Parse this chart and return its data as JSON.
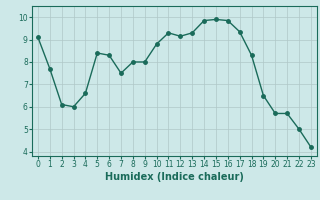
{
  "x": [
    0,
    1,
    2,
    3,
    4,
    5,
    6,
    7,
    8,
    9,
    10,
    11,
    12,
    13,
    14,
    15,
    16,
    17,
    18,
    19,
    20,
    21,
    22,
    23
  ],
  "y": [
    9.1,
    7.7,
    6.1,
    6.0,
    6.6,
    8.4,
    8.3,
    7.5,
    8.0,
    8.0,
    8.8,
    9.3,
    9.15,
    9.3,
    9.85,
    9.9,
    9.85,
    9.35,
    8.3,
    6.5,
    5.7,
    5.7,
    5.0,
    4.2
  ],
  "title": "",
  "xlabel": "Humidex (Indice chaleur)",
  "ylabel": "",
  "xlim": [
    -0.5,
    23.5
  ],
  "ylim": [
    3.8,
    10.5
  ],
  "yticks": [
    4,
    5,
    6,
    7,
    8,
    9,
    10
  ],
  "xticks": [
    0,
    1,
    2,
    3,
    4,
    5,
    6,
    7,
    8,
    9,
    10,
    11,
    12,
    13,
    14,
    15,
    16,
    17,
    18,
    19,
    20,
    21,
    22,
    23
  ],
  "line_color": "#1a6b5a",
  "marker_color": "#1a6b5a",
  "bg_color": "#cde8e8",
  "grid_color": "#b0c8c8",
  "axis_color": "#1a6b5a",
  "tick_label_color": "#1a6b5a",
  "xlabel_color": "#1a6b5a",
  "xlabel_fontsize": 7,
  "tick_fontsize": 5.5,
  "marker_size": 2.5,
  "line_width": 1.0
}
